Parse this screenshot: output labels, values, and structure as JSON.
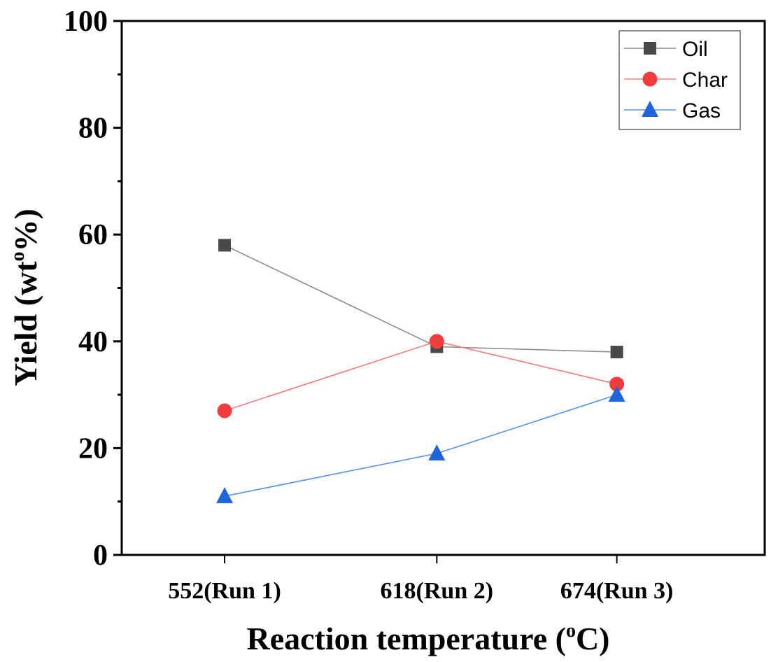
{
  "chart_data": {
    "type": "line",
    "title": "",
    "xlabel": "Reaction temperature (°C)",
    "xlabel_parts": {
      "main": "Reaction temperature (",
      "sup": "o",
      "end": "C)"
    },
    "ylabel": "Yield (wt%)",
    "ylabel_parts": {
      "main": "Yield (wt",
      "sup": "o",
      "end": "%)"
    },
    "x": [
      552,
      618,
      674
    ],
    "x_tick_labels": [
      "552(Run 1)",
      "618(Run 2)",
      "674(Run 3)"
    ],
    "xlim": [
      520,
      720
    ],
    "ylim": [
      0,
      100
    ],
    "y_ticks": [
      0,
      20,
      40,
      60,
      80,
      100
    ],
    "y_tick_labels": [
      "0",
      "20",
      "40",
      "60",
      "80",
      "100"
    ],
    "y_minor_ticks": [
      10,
      30,
      50,
      70,
      90
    ],
    "grid": false,
    "legend_position": "top-right",
    "series": [
      {
        "name": "Oil",
        "marker": "square",
        "color": "#4a4a4a",
        "line_color": "#8c8c8c",
        "values": [
          58,
          39,
          38
        ]
      },
      {
        "name": "Char",
        "marker": "circle",
        "color": "#f03c3c",
        "line_color": "#f57a7a",
        "values": [
          27,
          40,
          32
        ]
      },
      {
        "name": "Gas",
        "marker": "triangle",
        "color": "#1f66dc",
        "line_color": "#5b8fe6",
        "values": [
          11,
          19,
          30
        ]
      }
    ]
  }
}
